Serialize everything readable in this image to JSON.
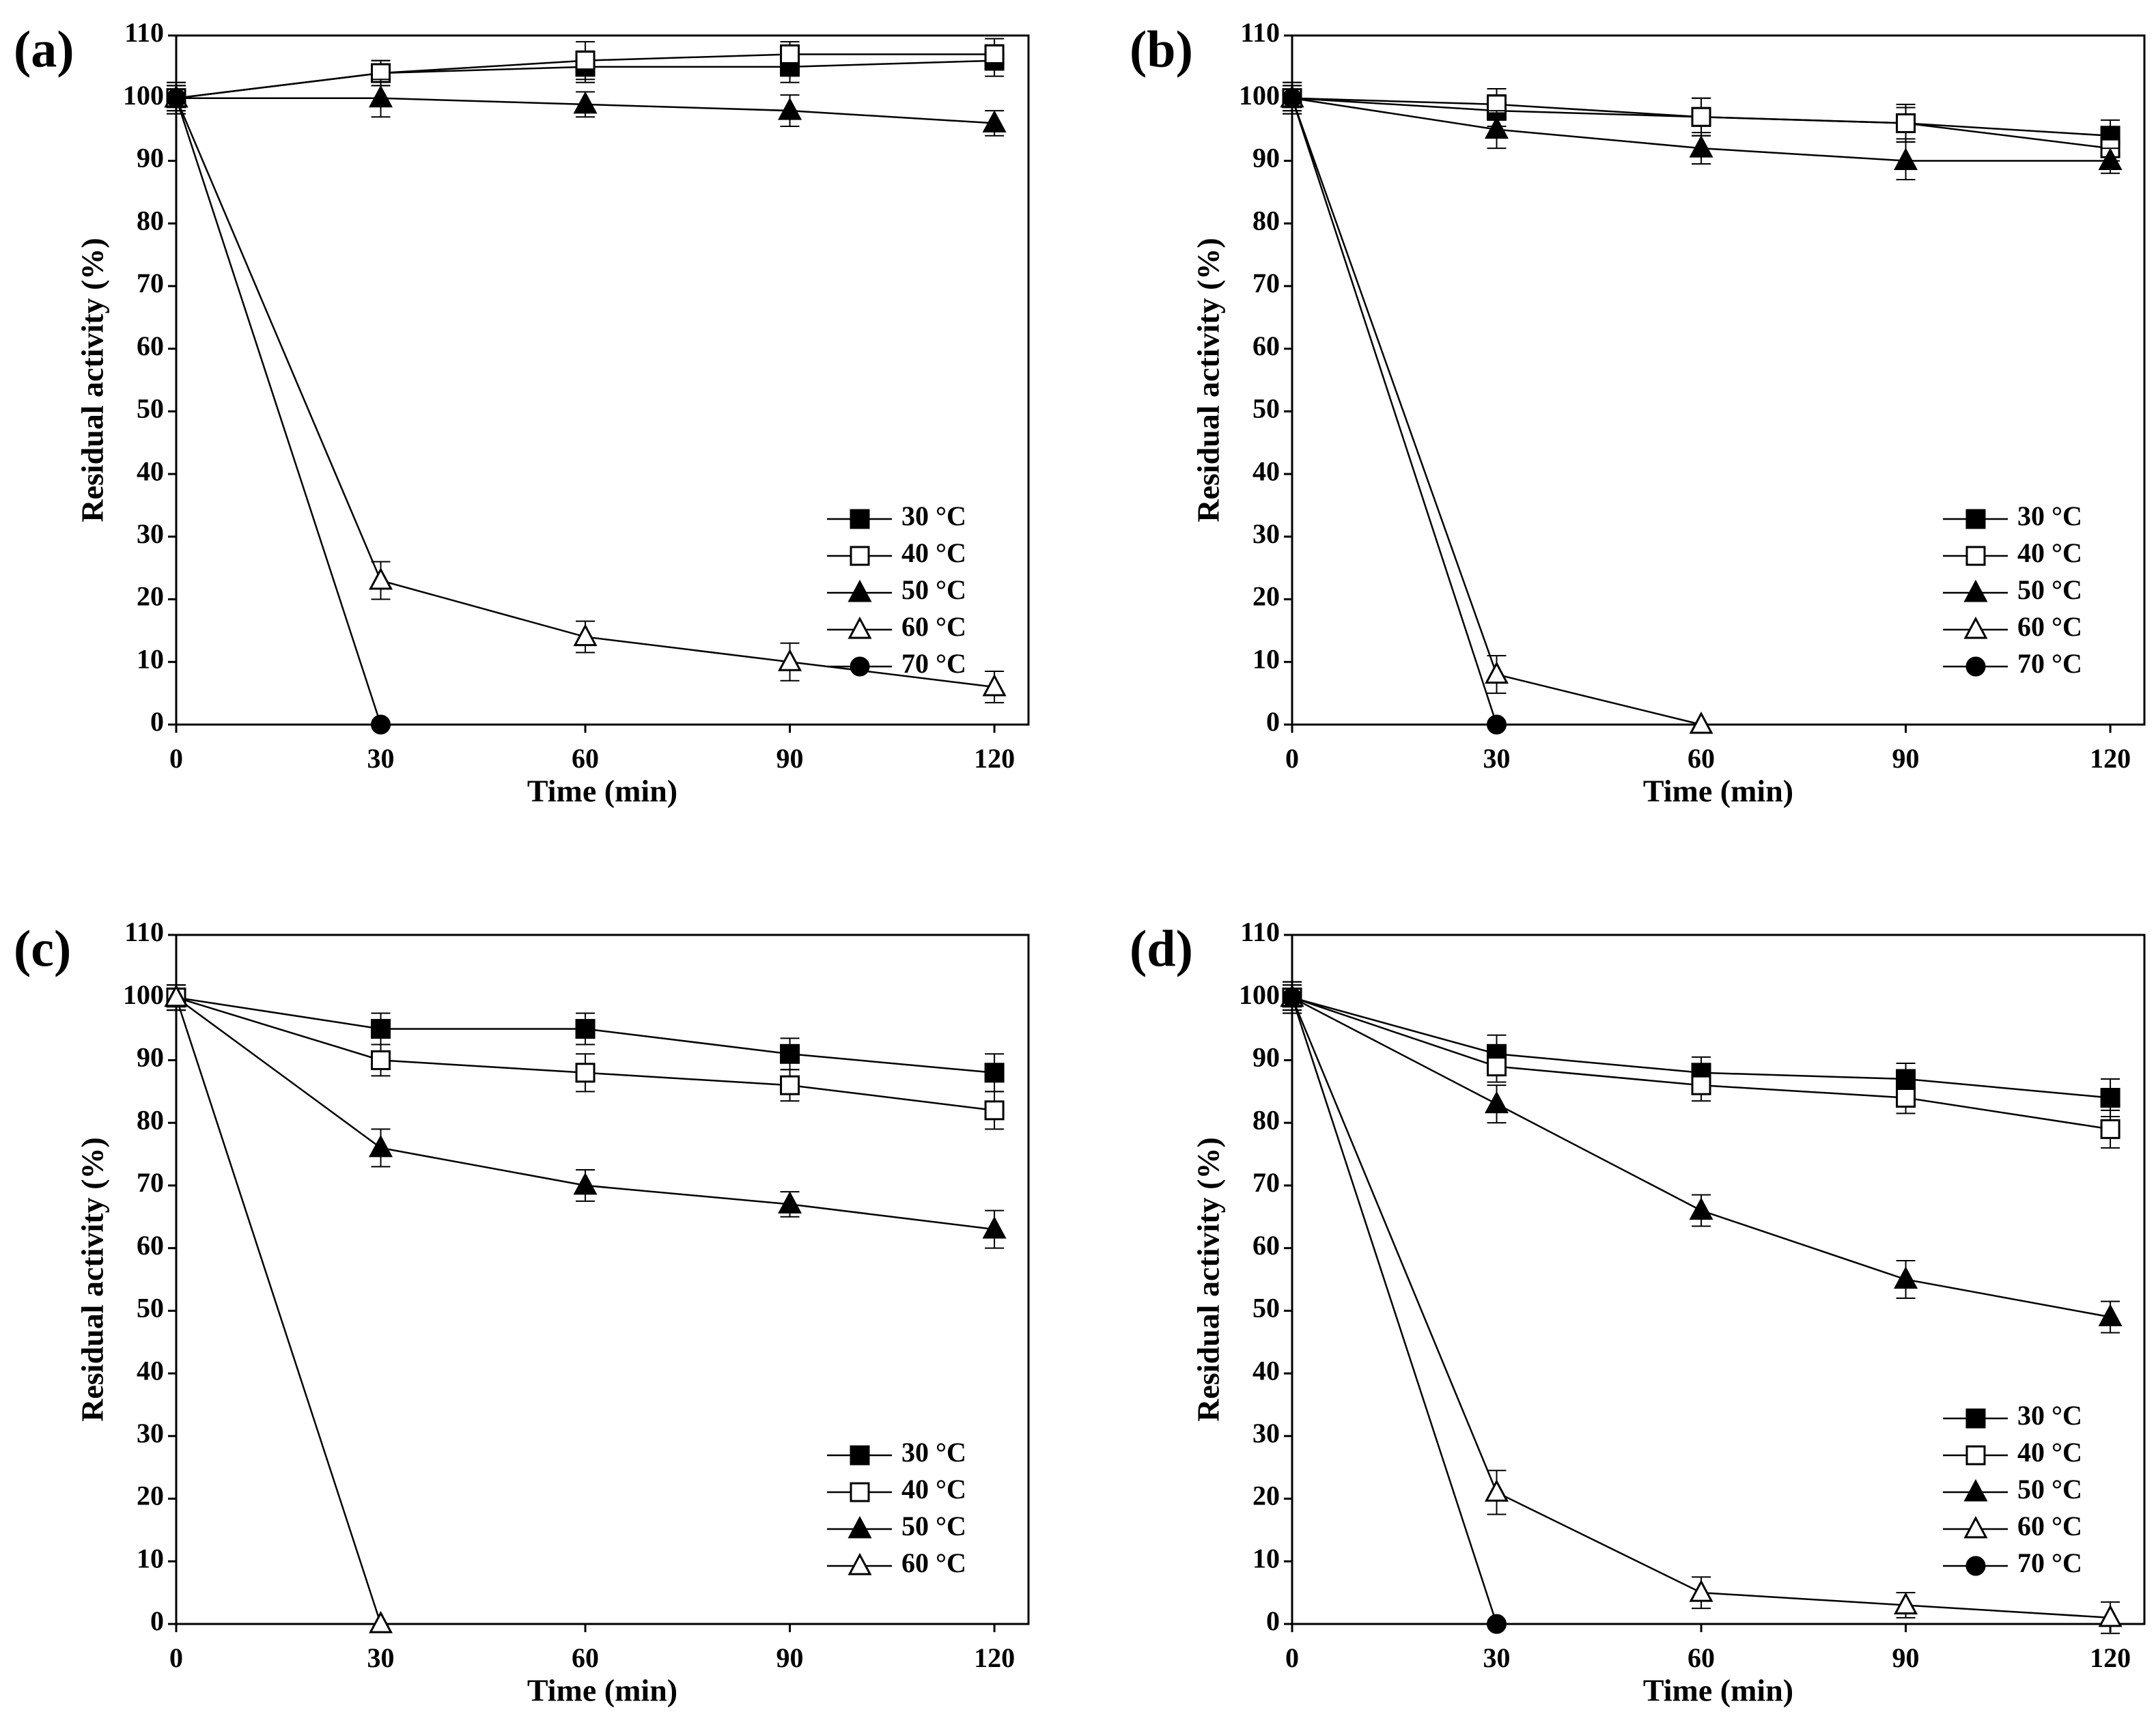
{
  "chart_data": [
    {
      "type": "line",
      "title": "(a)",
      "xlabel": "Time (min)",
      "ylabel": "Residual activity (%)",
      "x": [
        0,
        30,
        60,
        90,
        120
      ],
      "xlim": [
        0,
        125
      ],
      "xticks": [
        0,
        30,
        60,
        90,
        120
      ],
      "ylim": [
        0,
        110
      ],
      "yticks": [
        0,
        10,
        20,
        30,
        40,
        50,
        60,
        70,
        80,
        90,
        100,
        110
      ],
      "legend": "lower right",
      "series": [
        {
          "name": "30 °C",
          "color": "#000000",
          "marker": "square",
          "filled": true,
          "values": [
            100,
            104,
            105,
            105,
            106
          ],
          "errors": [
            2.5,
            2,
            2.5,
            2.5,
            2.5
          ]
        },
        {
          "name": "40 °C",
          "color": "#000000",
          "marker": "square",
          "filled": false,
          "values": [
            100,
            104,
            106,
            107,
            107
          ],
          "errors": [
            2.5,
            2,
            3,
            2,
            2.5
          ]
        },
        {
          "name": "50 °C",
          "color": "#000000",
          "marker": "triangle",
          "filled": true,
          "values": [
            100,
            100,
            99,
            98,
            96
          ],
          "errors": [
            2,
            3,
            2,
            2.5,
            2
          ]
        },
        {
          "name": "60 °C",
          "color": "#000000",
          "marker": "triangle",
          "filled": false,
          "values": [
            100,
            23,
            14,
            10,
            6
          ],
          "errors": [
            2,
            3,
            2.5,
            3,
            2.5
          ]
        },
        {
          "name": "70 °C",
          "color": "#000000",
          "marker": "circle",
          "filled": true,
          "values": [
            100,
            0,
            null,
            null,
            null
          ],
          "errors": [
            2,
            0,
            null,
            null,
            null
          ]
        }
      ]
    },
    {
      "type": "line",
      "title": "(b)",
      "xlabel": "Time (min)",
      "ylabel": "Residual activity (%)",
      "x": [
        0,
        30,
        60,
        90,
        120
      ],
      "xlim": [
        0,
        125
      ],
      "xticks": [
        0,
        30,
        60,
        90,
        120
      ],
      "ylim": [
        0,
        110
      ],
      "yticks": [
        0,
        10,
        20,
        30,
        40,
        50,
        60,
        70,
        80,
        90,
        100,
        110
      ],
      "legend": "lower right",
      "series": [
        {
          "name": "30 °C",
          "color": "#000000",
          "marker": "square",
          "filled": true,
          "values": [
            100,
            98,
            97,
            96,
            94
          ],
          "errors": [
            2.5,
            2.5,
            3,
            3,
            2.5
          ]
        },
        {
          "name": "40 °C",
          "color": "#000000",
          "marker": "square",
          "filled": false,
          "values": [
            100,
            99,
            97,
            96,
            92
          ],
          "errors": [
            2.5,
            2.5,
            3,
            2.5,
            2
          ]
        },
        {
          "name": "50 °C",
          "color": "#000000",
          "marker": "triangle",
          "filled": true,
          "values": [
            100,
            95,
            92,
            90,
            90
          ],
          "errors": [
            2,
            3,
            2.5,
            3,
            2
          ]
        },
        {
          "name": "60 °C",
          "color": "#000000",
          "marker": "triangle",
          "filled": false,
          "values": [
            100,
            8,
            0,
            null,
            null
          ],
          "errors": [
            2,
            3,
            0,
            null,
            null
          ]
        },
        {
          "name": "70 °C",
          "color": "#000000",
          "marker": "circle",
          "filled": true,
          "values": [
            100,
            0,
            null,
            null,
            null
          ],
          "errors": [
            2,
            0,
            null,
            null,
            null
          ]
        }
      ]
    },
    {
      "type": "line",
      "title": "(c)",
      "xlabel": "Time (min)",
      "ylabel": "Residual activity (%)",
      "x": [
        0,
        30,
        60,
        90,
        120
      ],
      "xlim": [
        0,
        125
      ],
      "xticks": [
        0,
        30,
        60,
        90,
        120
      ],
      "ylim": [
        0,
        110
      ],
      "yticks": [
        0,
        10,
        20,
        30,
        40,
        50,
        60,
        70,
        80,
        90,
        100,
        110
      ],
      "legend": "lower right",
      "series": [
        {
          "name": "30 °C",
          "color": "#000000",
          "marker": "square",
          "filled": true,
          "values": [
            100,
            95,
            95,
            91,
            88
          ],
          "errors": [
            2,
            2.5,
            2.5,
            2.5,
            3
          ]
        },
        {
          "name": "40 °C",
          "color": "#000000",
          "marker": "square",
          "filled": false,
          "values": [
            100,
            90,
            88,
            86,
            82
          ],
          "errors": [
            2,
            2.5,
            3,
            2.5,
            3
          ]
        },
        {
          "name": "50 °C",
          "color": "#000000",
          "marker": "triangle",
          "filled": true,
          "values": [
            100,
            76,
            70,
            67,
            63
          ],
          "errors": [
            2,
            3,
            2.5,
            2,
            3
          ]
        },
        {
          "name": "60 °C",
          "color": "#000000",
          "marker": "triangle",
          "filled": false,
          "values": [
            100,
            0,
            null,
            null,
            null
          ],
          "errors": [
            2,
            0,
            null,
            null,
            null
          ]
        }
      ]
    },
    {
      "type": "line",
      "title": "(d)",
      "xlabel": "Time (min)",
      "ylabel": "Residual activity (%)",
      "x": [
        0,
        30,
        60,
        90,
        120
      ],
      "xlim": [
        0,
        125
      ],
      "xticks": [
        0,
        30,
        60,
        90,
        120
      ],
      "ylim": [
        0,
        110
      ],
      "yticks": [
        0,
        10,
        20,
        30,
        40,
        50,
        60,
        70,
        80,
        90,
        100,
        110
      ],
      "legend": "lower right",
      "series": [
        {
          "name": "30 °C",
          "color": "#000000",
          "marker": "square",
          "filled": true,
          "values": [
            100,
            91,
            88,
            87,
            84
          ],
          "errors": [
            2.5,
            3,
            2.5,
            2.5,
            3
          ]
        },
        {
          "name": "40 °C",
          "color": "#000000",
          "marker": "square",
          "filled": false,
          "values": [
            100,
            89,
            86,
            84,
            79
          ],
          "errors": [
            2.5,
            2.5,
            2.5,
            2.5,
            3
          ]
        },
        {
          "name": "50 °C",
          "color": "#000000",
          "marker": "triangle",
          "filled": true,
          "values": [
            100,
            83,
            66,
            55,
            49
          ],
          "errors": [
            2,
            3,
            2.5,
            3,
            2.5
          ]
        },
        {
          "name": "60 °C",
          "color": "#000000",
          "marker": "triangle",
          "filled": false,
          "values": [
            100,
            21,
            5,
            3,
            1
          ],
          "errors": [
            2,
            3.5,
            2.5,
            2,
            2.5
          ]
        },
        {
          "name": "70 °C",
          "color": "#000000",
          "marker": "circle",
          "filled": true,
          "values": [
            100,
            0,
            null,
            null,
            null
          ],
          "errors": [
            2,
            0,
            null,
            null,
            null
          ]
        }
      ]
    }
  ]
}
